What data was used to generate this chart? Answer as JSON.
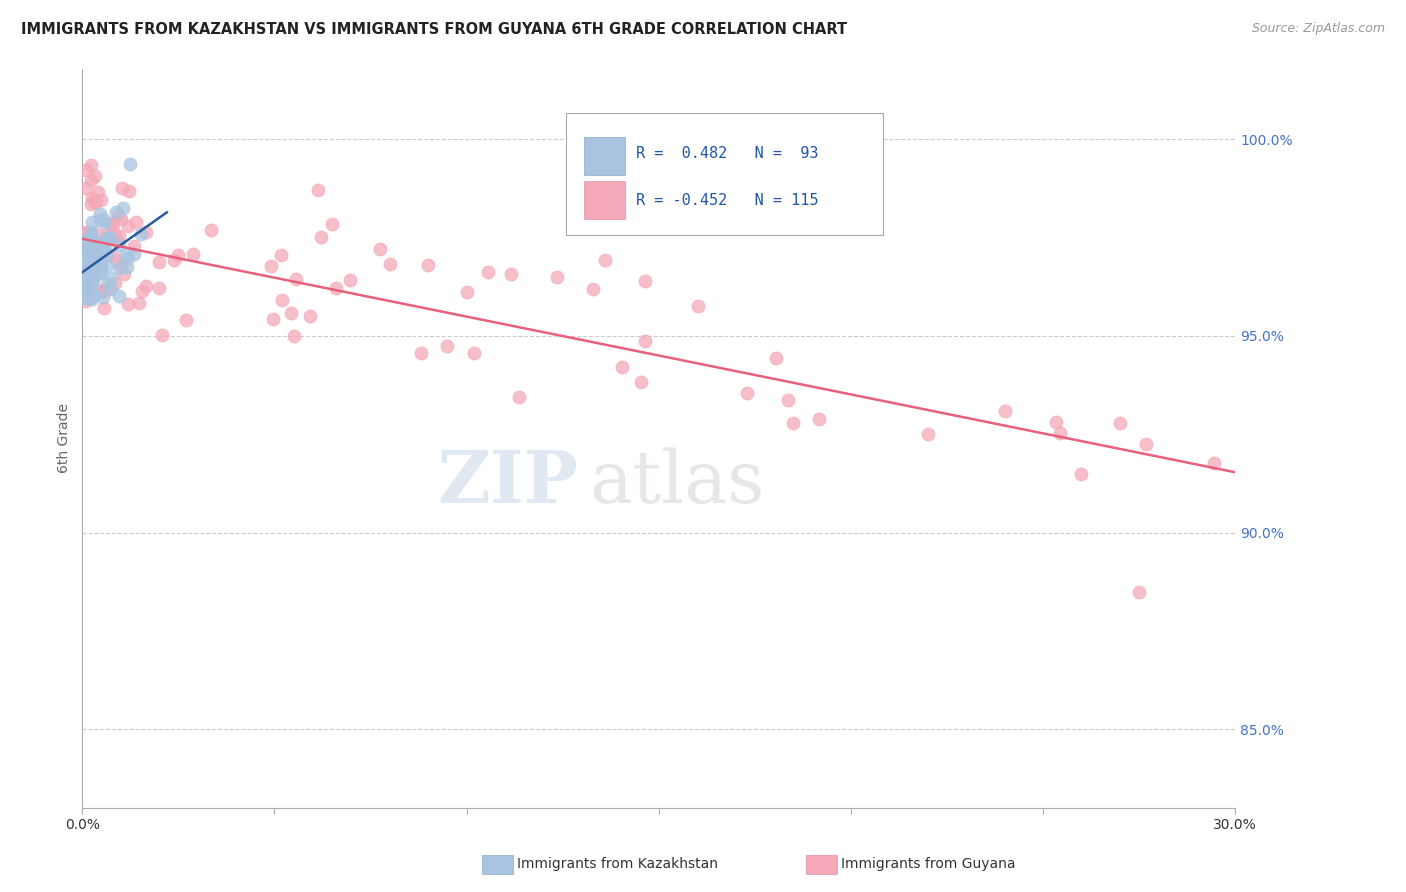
{
  "title": "IMMIGRANTS FROM KAZAKHSTAN VS IMMIGRANTS FROM GUYANA 6TH GRADE CORRELATION CHART",
  "source": "Source: ZipAtlas.com",
  "ylabel": "6th Grade",
  "y_ticks": [
    85.0,
    90.0,
    95.0,
    100.0
  ],
  "y_tick_labels": [
    "85.0%",
    "90.0%",
    "95.0%",
    "100.0%"
  ],
  "x_range": [
    0.0,
    0.3
  ],
  "y_range": [
    83.0,
    101.8
  ],
  "legend_blue_r": "0.482",
  "legend_blue_n": "93",
  "legend_pink_r": "-0.452",
  "legend_pink_n": "115",
  "legend_label_blue": "Immigrants from Kazakhstan",
  "legend_label_pink": "Immigrants from Guyana",
  "blue_color": "#a8c4e0",
  "pink_color": "#f4a8b8",
  "blue_line_color": "#2a5a9f",
  "pink_line_color": "#e8607a",
  "watermark_zip": "ZIP",
  "watermark_atlas": "atlas"
}
